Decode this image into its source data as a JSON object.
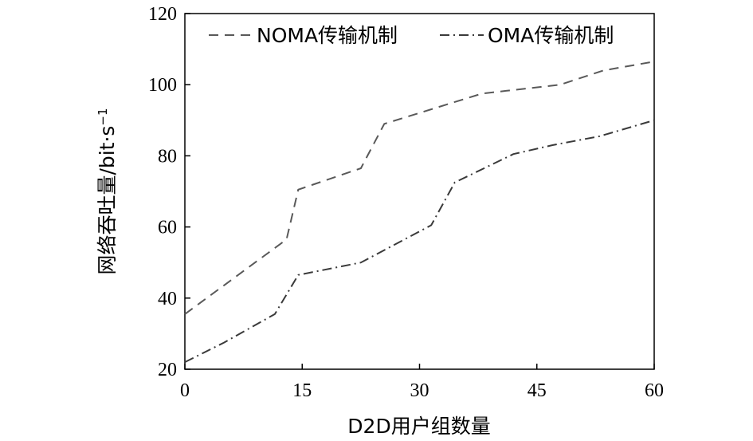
{
  "chart_data": {
    "type": "line",
    "title": "",
    "xlabel": "D2D用户组数量",
    "ylabel": "网络吞吐量/bit·s",
    "ylabel_exponent": "−1",
    "xlim": [
      0,
      60
    ],
    "ylim": [
      20,
      120
    ],
    "xticks": [
      0,
      15,
      30,
      45,
      60
    ],
    "yticks": [
      20,
      40,
      60,
      80,
      100,
      120
    ],
    "grid": false,
    "legend_position": "top",
    "series": [
      {
        "name": "NOMA传输机制",
        "style": "dashed",
        "color": "#595959",
        "x": [
          0,
          13,
          14.5,
          22.5,
          25.5,
          38,
          48,
          53.5,
          60
        ],
        "y": [
          35.5,
          56.5,
          70.5,
          76.5,
          89,
          97.5,
          100,
          104,
          106.5
        ]
      },
      {
        "name": "OMA传输机制",
        "style": "dashdot",
        "color": "#3a3a3a",
        "x": [
          0,
          5,
          11.5,
          14.5,
          22.5,
          31.5,
          34.5,
          42,
          47,
          53,
          60
        ],
        "y": [
          22,
          27.5,
          35.5,
          46.5,
          50,
          60.5,
          72.5,
          80.5,
          83,
          85.5,
          90
        ]
      }
    ]
  }
}
